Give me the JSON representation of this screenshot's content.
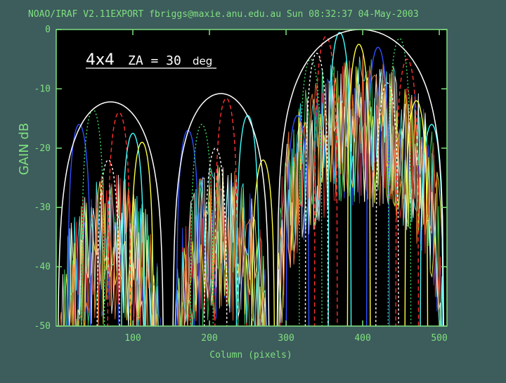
{
  "header": "NOAO/IRAF V2.11EXPORT fbriggs@maxie.anu.edu.au Sun 08:32:37 04-May-2003",
  "chart_data": {
    "type": "line",
    "xlabel": "Column (pixels)",
    "ylabel": "GAIN dB",
    "xlim": [
      0,
      510
    ],
    "ylim": [
      -50,
      0
    ],
    "xticks": [
      100,
      200,
      300,
      400,
      500
    ],
    "yticks": [
      0,
      -10,
      -20,
      -30,
      -40,
      -50
    ],
    "annotation": {
      "part1": "4x4",
      "part2": "ZA = 30",
      "part3": "deg"
    },
    "grid": false,
    "envelope": {
      "color": "#ffffff",
      "lobes": [
        {
          "x_start": 2,
          "x_end": 140,
          "peak": -12.2
        },
        {
          "x_start": 152,
          "x_end": 278,
          "peak": -10.8
        },
        {
          "x_start": 288,
          "x_end": 506,
          "peak": 0
        }
      ]
    },
    "beams": [
      {
        "name": "",
        "color": "#ff3030",
        "dash": "6,4",
        "peaks": [
          [
            82,
            -14
          ],
          [
            222,
            -11.6
          ],
          [
            352,
            -1.2
          ],
          [
            458,
            -5
          ]
        ]
      },
      {
        "name": "",
        "color": "#3050ff",
        "dash": "",
        "peaks": [
          [
            30,
            -16
          ],
          [
            172,
            -17
          ],
          [
            315,
            -14.5
          ],
          [
            420,
            -3
          ]
        ]
      },
      {
        "name": "",
        "color": "#40e060",
        "dash": "2,3",
        "peaks": [
          [
            48,
            -13.5
          ],
          [
            190,
            -16
          ],
          [
            332,
            -5
          ],
          [
            448,
            -1.5
          ]
        ]
      },
      {
        "name": "",
        "color": "#40ffff",
        "dash": "",
        "peaks": [
          [
            100,
            -17.5
          ],
          [
            250,
            -14.5
          ],
          [
            370,
            -0.5
          ],
          [
            490,
            -16
          ]
        ]
      },
      {
        "name": "",
        "color": "#ffff40",
        "dash": "",
        "peaks": [
          [
            112,
            -19
          ],
          [
            270,
            -22
          ],
          [
            395,
            -2.5
          ],
          [
            470,
            -12
          ]
        ]
      },
      {
        "name": "",
        "color": "#ffffff",
        "dash": "3,3",
        "peaks": [
          [
            68,
            -22
          ],
          [
            208,
            -20
          ],
          [
            340,
            -4
          ],
          [
            432,
            -9
          ]
        ]
      }
    ]
  }
}
